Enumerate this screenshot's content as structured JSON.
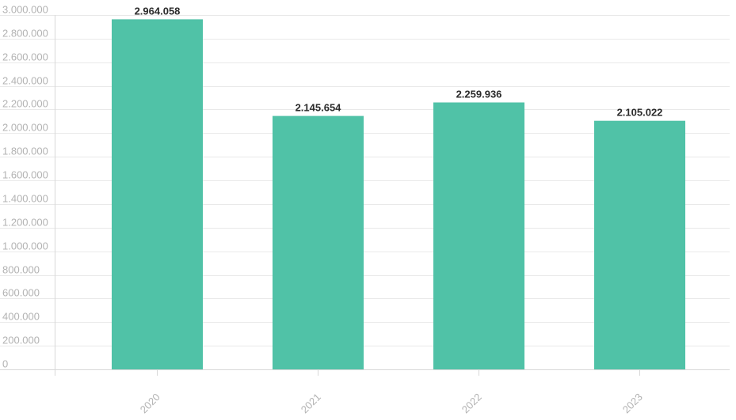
{
  "chart_data": {
    "type": "bar",
    "categories": [
      "2020",
      "2021",
      "2022",
      "2023"
    ],
    "values": [
      2964058,
      2145654,
      2259936,
      2105022
    ],
    "data_labels": [
      "2.964.058",
      "2.145.654",
      "2.259.936",
      "2.105.022"
    ],
    "title": "",
    "xlabel": "",
    "ylabel": "",
    "ylim": [
      0,
      3000000
    ],
    "y_ticks": [
      0,
      200000,
      400000,
      600000,
      800000,
      1000000,
      1200000,
      1400000,
      1600000,
      1800000,
      2000000,
      2200000,
      2400000,
      2600000,
      2800000,
      3000000
    ],
    "y_tick_labels": [
      "0",
      "200.000",
      "400.000",
      "600.000",
      "800.000",
      "1.000.000",
      "1.200.000",
      "1.400.000",
      "1.600.000",
      "1.800.000",
      "2.000.000",
      "2.200.000",
      "2.400.000",
      "2.600.000",
      "2.800.000",
      "3.000.000"
    ],
    "grid": true,
    "legend": "none",
    "bar_color": "#50c2a7"
  }
}
